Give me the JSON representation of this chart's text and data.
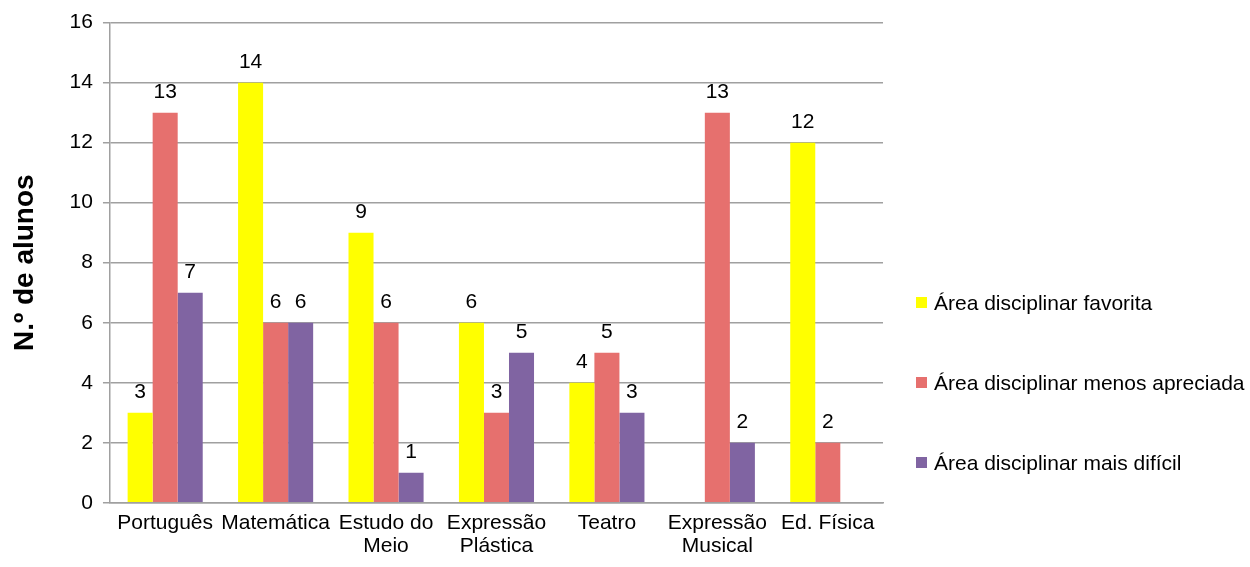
{
  "chart_data": {
    "type": "bar",
    "ylabel": "N.º de alunos",
    "categories": [
      "Português",
      "Matemática",
      "Estudo do Meio",
      "Expressão Plástica",
      "Teatro",
      "Expressão Musical",
      "Ed. Física"
    ],
    "series": [
      {
        "name": "Área disciplinar favorita",
        "color": "#ffff00",
        "values": [
          3,
          14,
          9,
          6,
          4,
          null,
          12
        ]
      },
      {
        "name": "Área disciplinar menos apreciada",
        "color": "#e6706e",
        "values": [
          13,
          6,
          6,
          3,
          5,
          13,
          2
        ]
      },
      {
        "name": "Área disciplinar mais difícil",
        "color": "#8064a2",
        "values": [
          7,
          6,
          1,
          5,
          3,
          2,
          null
        ]
      }
    ],
    "ylim": [
      0,
      16
    ],
    "yticks": [
      0,
      2,
      4,
      6,
      8,
      10,
      12,
      14,
      16
    ],
    "grid": "y",
    "legend": "right",
    "data_labels": true
  }
}
